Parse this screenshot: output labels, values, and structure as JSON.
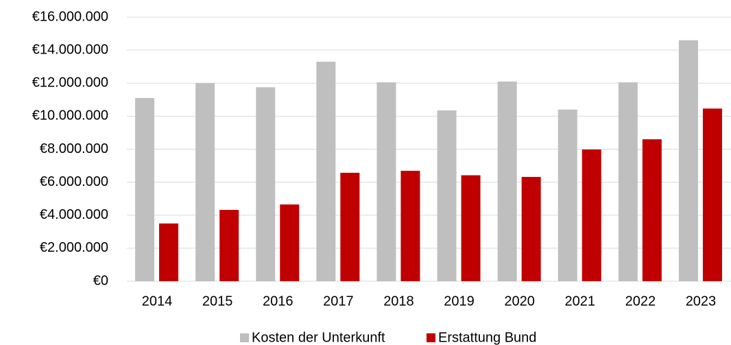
{
  "chart_data": {
    "type": "bar",
    "categories": [
      "2014",
      "2015",
      "2016",
      "2017",
      "2018",
      "2019",
      "2020",
      "2021",
      "2022",
      "2023"
    ],
    "series": [
      {
        "name": "Kosten der Unterkunft",
        "color": "#bfbfbf",
        "values": [
          11100000,
          12000000,
          11750000,
          13300000,
          12050000,
          10350000,
          12100000,
          10400000,
          12050000,
          14600000
        ]
      },
      {
        "name": "Erstattung Bund",
        "color": "#c00000",
        "values": [
          3500000,
          4320000,
          4650000,
          6570000,
          6690000,
          6420000,
          6320000,
          7980000,
          8600000,
          10460000
        ]
      }
    ],
    "ylim": [
      0,
      16000000
    ],
    "yticks": [
      {
        "value": 0,
        "label": "€0"
      },
      {
        "value": 2000000,
        "label": "€2.000.000"
      },
      {
        "value": 4000000,
        "label": "€4.000.000"
      },
      {
        "value": 6000000,
        "label": "€6.000.000"
      },
      {
        "value": 8000000,
        "label": "€8.000.000"
      },
      {
        "value": 10000000,
        "label": "€10.000.000"
      },
      {
        "value": 12000000,
        "label": "€12.000.000"
      },
      {
        "value": 14000000,
        "label": "€14.000.000"
      },
      {
        "value": 16000000,
        "label": "€16.000.000"
      }
    ],
    "grid": true,
    "legend": "bottom"
  }
}
